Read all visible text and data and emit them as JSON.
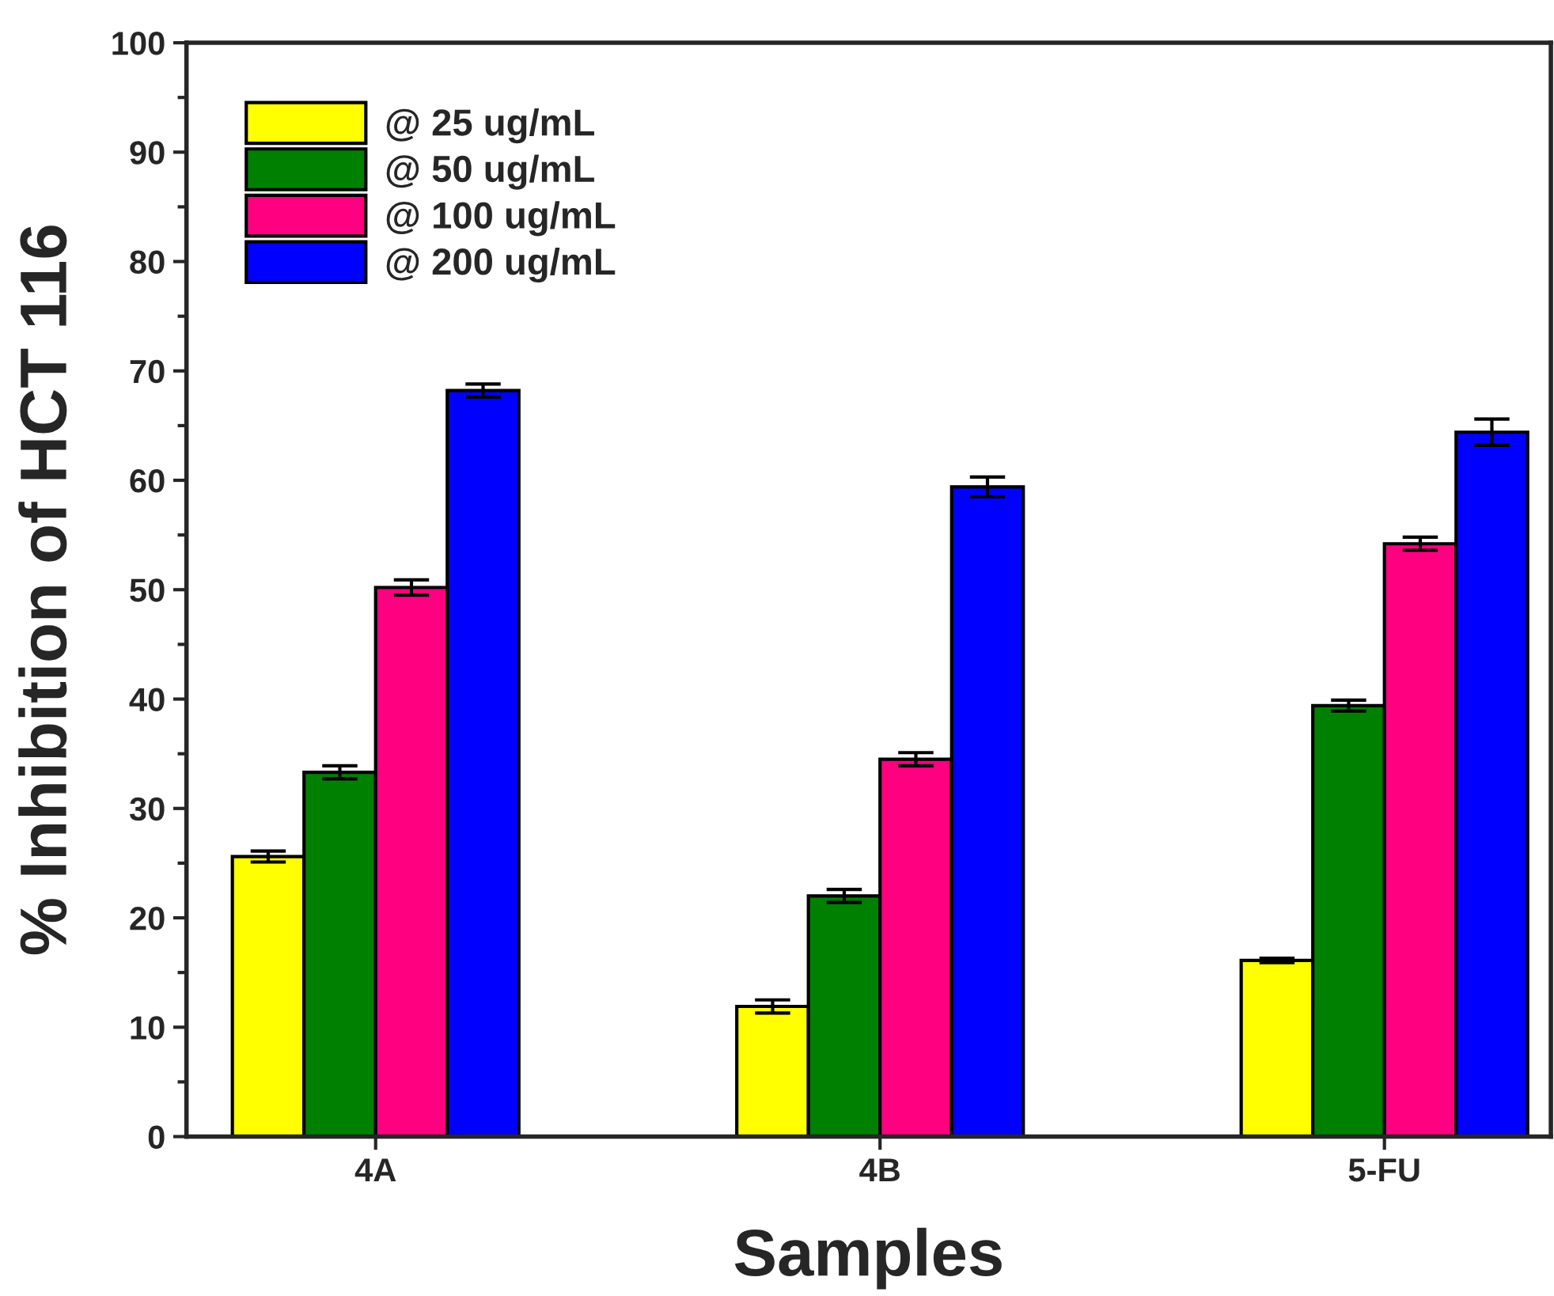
{
  "chart_data": {
    "type": "bar",
    "xlabel": "Samples",
    "ylabel": "% Inhibition of HCT 116",
    "categories": [
      "4A",
      "4B",
      "5-FU"
    ],
    "series": [
      {
        "name": "@ 25 ug/mL",
        "color": "#ffff00",
        "values": [
          25.6,
          11.9,
          16.1
        ],
        "errors": [
          0.5,
          0.6,
          0.2
        ]
      },
      {
        "name": "@ 50 ug/mL",
        "color": "#008000",
        "values": [
          33.3,
          22.0,
          39.4
        ],
        "errors": [
          0.6,
          0.6,
          0.5
        ]
      },
      {
        "name": "@ 100 ug/mL",
        "color": "#ff0080",
        "values": [
          50.2,
          34.5,
          54.2
        ],
        "errors": [
          0.7,
          0.6,
          0.6
        ]
      },
      {
        "name": "@ 200 ug/mL",
        "color": "#0000ff",
        "values": [
          68.2,
          59.4,
          64.4
        ],
        "errors": [
          0.6,
          0.9,
          1.2
        ]
      }
    ],
    "ylim": [
      0,
      100
    ],
    "yticks": [
      0,
      10,
      20,
      30,
      40,
      50,
      60,
      70,
      80,
      90,
      100
    ],
    "grid": false,
    "legend": "top left"
  }
}
